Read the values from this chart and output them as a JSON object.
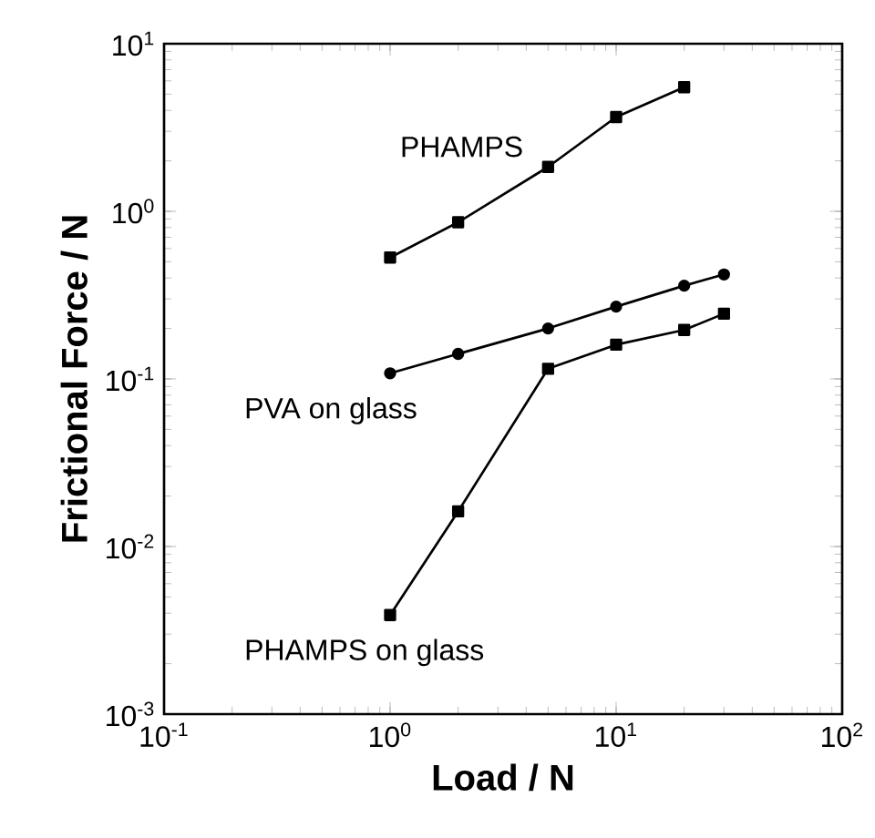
{
  "chart_data": {
    "type": "line",
    "xlabel": "Load / N",
    "ylabel": "Frictional Force / N",
    "log": "xy",
    "line_style": "solid",
    "grid": false,
    "xlim": [
      0.1,
      100
    ],
    "ylim": [
      0.001,
      10
    ],
    "xticks": [
      {
        "value": 0.1,
        "label": "10$^{-1}$"
      },
      {
        "value": 1,
        "label": "10$^{0}$"
      },
      {
        "value": 10,
        "label": "10$^{1}$"
      },
      {
        "value": 100,
        "label": "10$^{2}$"
      }
    ],
    "yticks": [
      {
        "value": 0.001,
        "label": "10$^{-3}$"
      },
      {
        "value": 0.01,
        "label": "10$^{-2}$"
      },
      {
        "value": 0.1,
        "label": "10$^{-1}$"
      },
      {
        "value": 1,
        "label": "10$^{0}$"
      },
      {
        "value": 10,
        "label": "10$^{1}$"
      }
    ],
    "series": [
      {
        "name": "PHAMPS",
        "color": "#000000",
        "marker": "square",
        "x": [
          1,
          2,
          5,
          10,
          20
        ],
        "values": [
          0.53,
          0.86,
          1.84,
          3.65,
          5.5
        ]
      },
      {
        "name": "PVA on glass",
        "color": "#000000",
        "marker": "circle",
        "x": [
          1,
          2,
          5,
          10,
          20,
          30
        ],
        "values": [
          0.108,
          0.141,
          0.2,
          0.27,
          0.36,
          0.42
        ]
      },
      {
        "name": "PHAMPS on glass",
        "color": "#000000",
        "marker": "square",
        "x": [
          1,
          2,
          5,
          10,
          20,
          30
        ],
        "values": [
          0.0039,
          0.0162,
          0.115,
          0.16,
          0.196,
          0.245
        ]
      }
    ]
  }
}
